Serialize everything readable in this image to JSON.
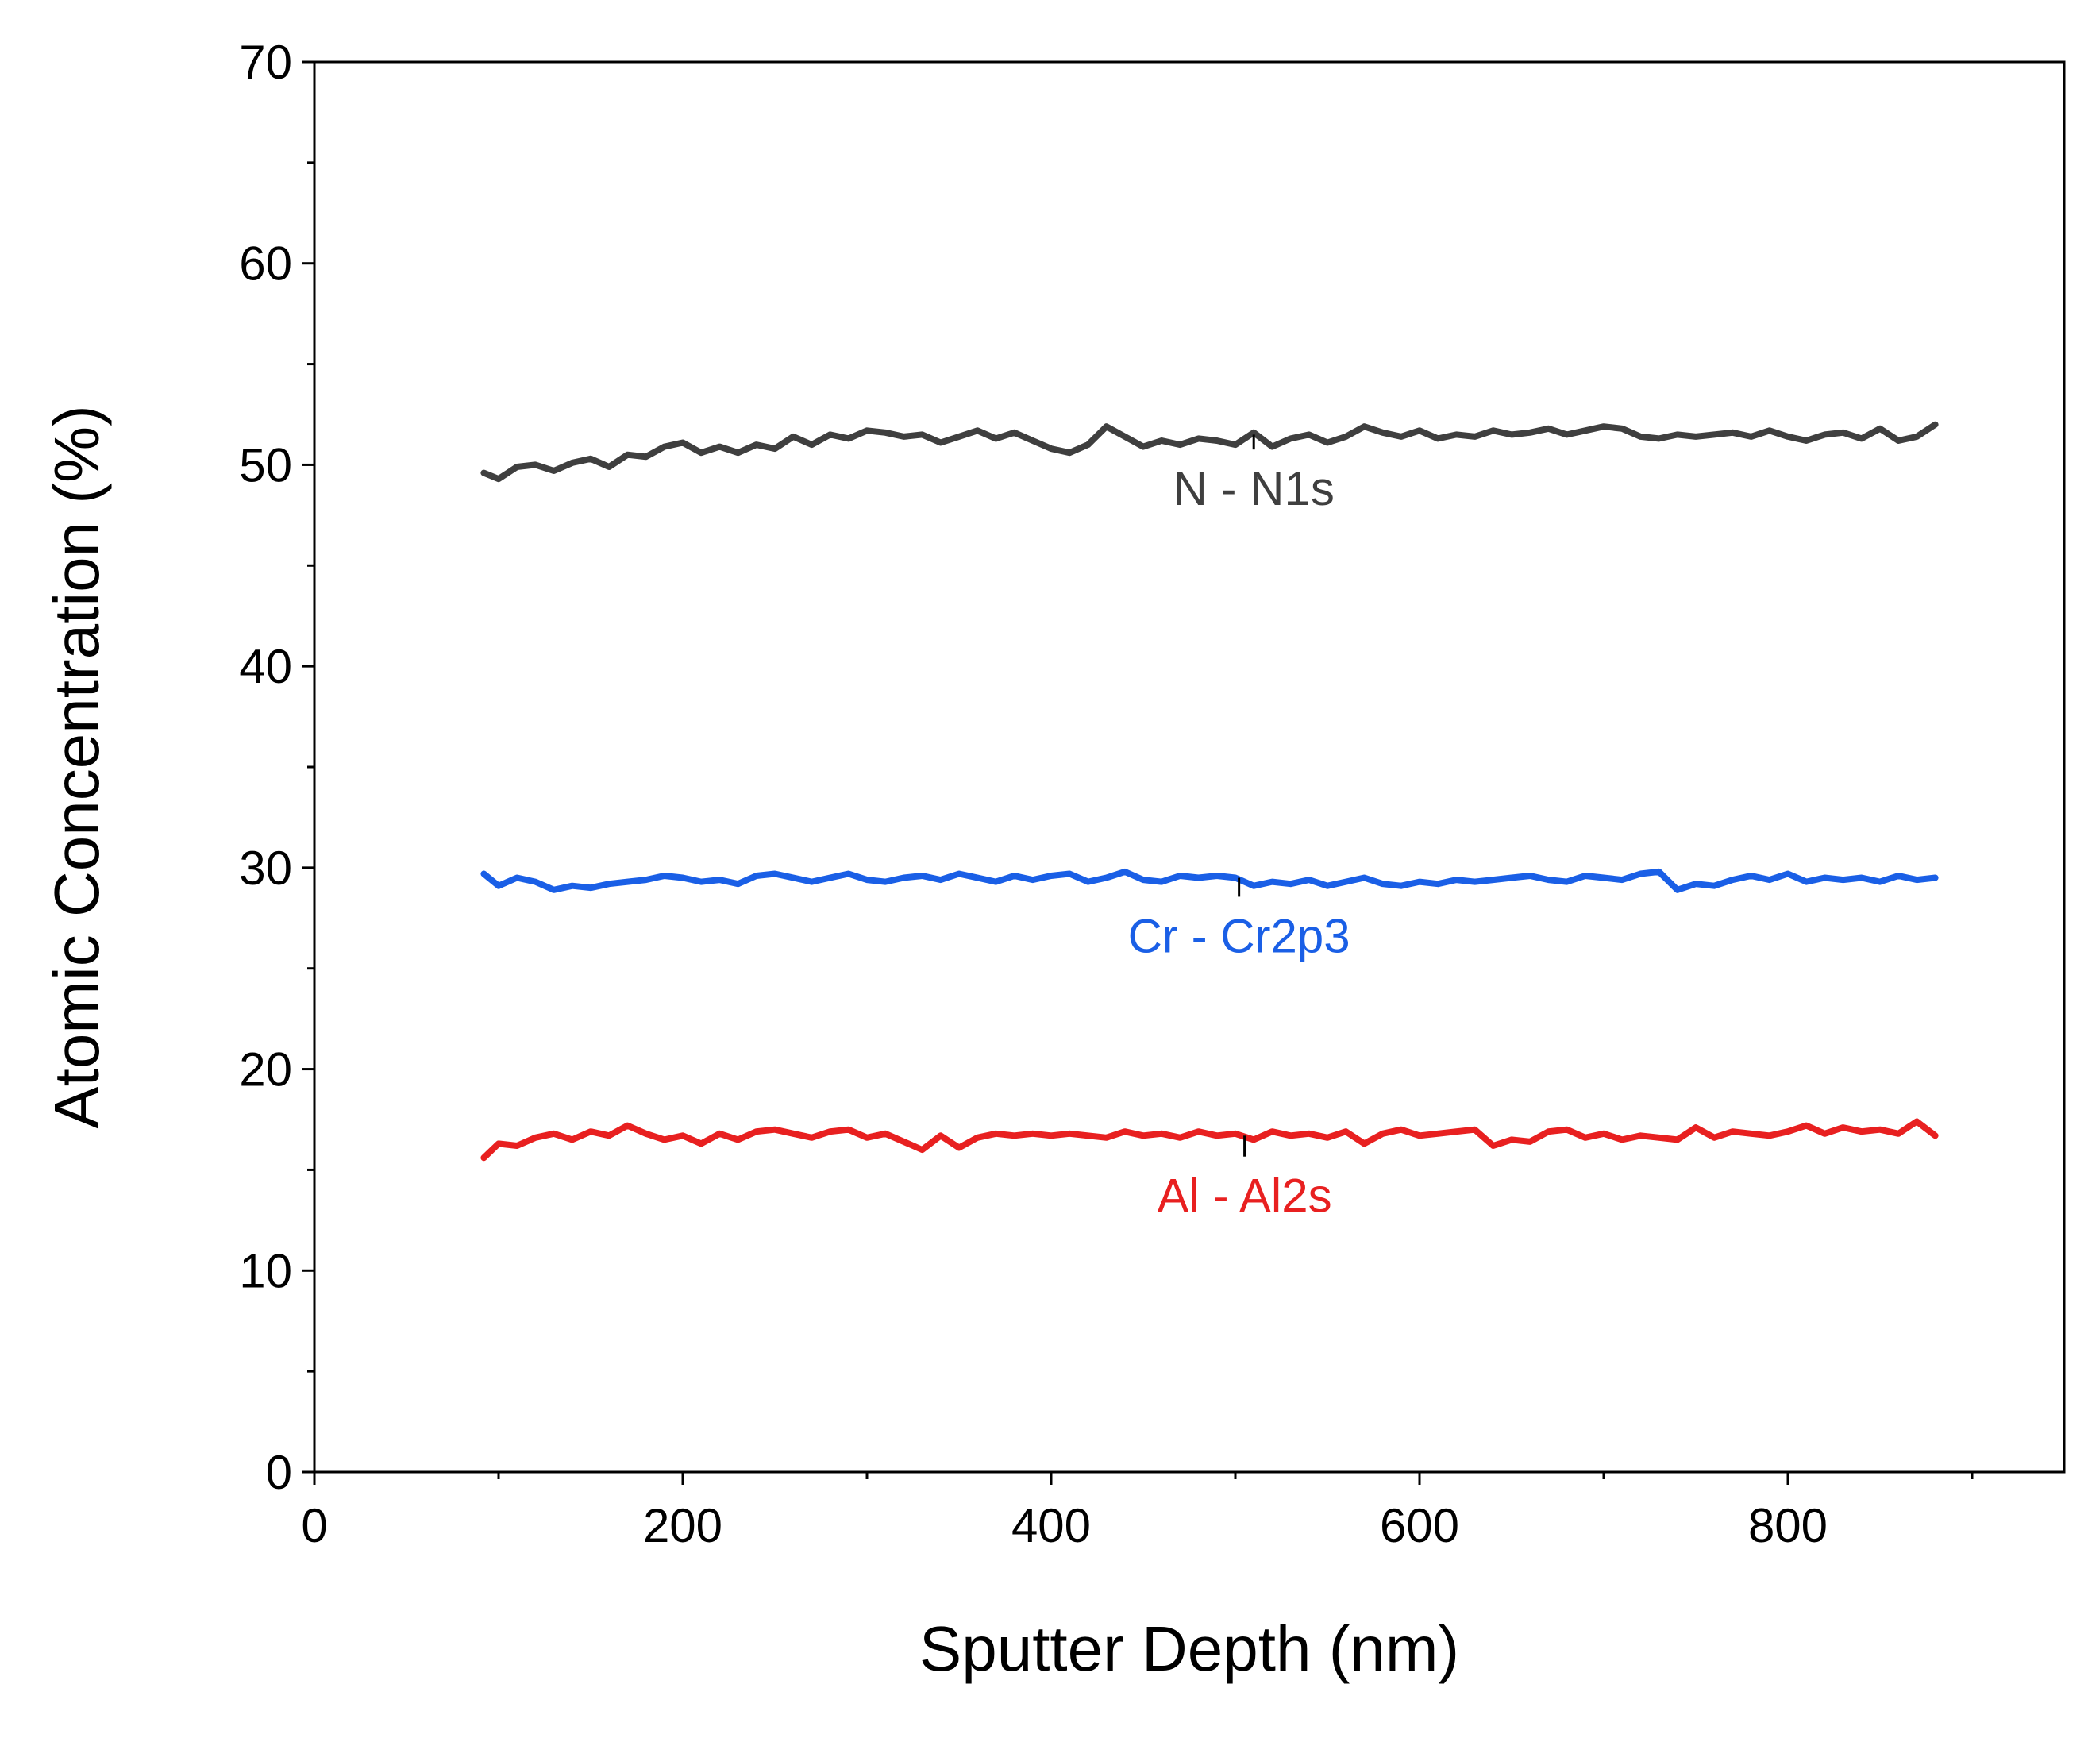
{
  "chart_data": {
    "type": "line",
    "xlabel": "Sputter Depth (nm)",
    "ylabel": "Atomic Concentration (%)",
    "xlim": [
      0,
      950
    ],
    "ylim": [
      0,
      70
    ],
    "xticks": [
      0,
      200,
      400,
      600,
      800
    ],
    "xticks_minor": [
      100,
      300,
      500,
      700,
      900
    ],
    "yticks": [
      0,
      10,
      20,
      30,
      40,
      50,
      60,
      70
    ],
    "yticks_minor": [
      5,
      15,
      25,
      35,
      45,
      55,
      65
    ],
    "xtick_labels": [
      "0",
      "200",
      "400",
      "600",
      "800"
    ],
    "ytick_labels": [
      "0",
      "10",
      "20",
      "30",
      "40",
      "50",
      "60",
      "70"
    ],
    "grid": false,
    "series": [
      {
        "name": "N - N1s",
        "label": "N - N1s",
        "color": "#3f3f3f",
        "label_color": "#3f3f3f",
        "annotation": {
          "x": 510,
          "y_line": 51.5,
          "y_label": 48
        },
        "x": [
          92,
          100,
          110,
          120,
          130,
          140,
          150,
          160,
          170,
          180,
          190,
          200,
          210,
          220,
          230,
          240,
          250,
          260,
          270,
          280,
          290,
          300,
          310,
          320,
          330,
          340,
          350,
          360,
          370,
          380,
          390,
          400,
          410,
          420,
          430,
          440,
          450,
          460,
          470,
          480,
          490,
          500,
          510,
          520,
          530,
          540,
          550,
          560,
          570,
          580,
          590,
          600,
          610,
          620,
          630,
          640,
          650,
          660,
          670,
          680,
          690,
          700,
          710,
          720,
          730,
          740,
          750,
          760,
          770,
          780,
          790,
          800,
          810,
          820,
          830,
          840,
          850,
          860,
          870,
          880
        ],
        "y": [
          49.6,
          49.3,
          49.9,
          50.0,
          49.7,
          50.1,
          50.3,
          49.9,
          50.5,
          50.4,
          50.9,
          51.1,
          50.6,
          50.9,
          50.6,
          51.0,
          50.8,
          51.4,
          51.0,
          51.5,
          51.3,
          51.7,
          51.6,
          51.4,
          51.5,
          51.1,
          51.4,
          51.7,
          51.3,
          51.6,
          51.2,
          50.8,
          50.6,
          51.0,
          51.9,
          51.4,
          50.9,
          51.2,
          51.0,
          51.3,
          51.2,
          51.0,
          51.6,
          50.9,
          51.3,
          51.5,
          51.1,
          51.4,
          51.9,
          51.6,
          51.4,
          51.7,
          51.3,
          51.5,
          51.4,
          51.7,
          51.5,
          51.6,
          51.8,
          51.5,
          51.7,
          51.9,
          51.8,
          51.4,
          51.3,
          51.5,
          51.4,
          51.5,
          51.6,
          51.4,
          51.7,
          51.4,
          51.2,
          51.5,
          51.6,
          51.3,
          51.8,
          51.2,
          51.4,
          52.0
        ]
      },
      {
        "name": "Cr - Cr2p3",
        "label": "Cr - Cr2p3",
        "color": "#1a5fe6",
        "label_color": "#1a5fe6",
        "annotation": {
          "x": 502,
          "y_line": 29.5,
          "y_label": 25.8
        },
        "x": [
          92,
          100,
          110,
          120,
          130,
          140,
          150,
          160,
          170,
          180,
          190,
          200,
          210,
          220,
          230,
          240,
          250,
          260,
          270,
          280,
          290,
          300,
          310,
          320,
          330,
          340,
          350,
          360,
          370,
          380,
          390,
          400,
          410,
          420,
          430,
          440,
          450,
          460,
          470,
          480,
          490,
          500,
          510,
          520,
          530,
          540,
          550,
          560,
          570,
          580,
          590,
          600,
          610,
          620,
          630,
          640,
          650,
          660,
          670,
          680,
          690,
          700,
          710,
          720,
          730,
          740,
          750,
          760,
          770,
          780,
          790,
          800,
          810,
          820,
          830,
          840,
          850,
          860,
          870,
          880
        ],
        "y": [
          29.7,
          29.1,
          29.5,
          29.3,
          28.9,
          29.1,
          29.0,
          29.2,
          29.3,
          29.4,
          29.6,
          29.5,
          29.3,
          29.4,
          29.2,
          29.6,
          29.7,
          29.5,
          29.3,
          29.5,
          29.7,
          29.4,
          29.3,
          29.5,
          29.6,
          29.4,
          29.7,
          29.5,
          29.3,
          29.6,
          29.4,
          29.6,
          29.7,
          29.3,
          29.5,
          29.8,
          29.4,
          29.3,
          29.6,
          29.5,
          29.6,
          29.5,
          29.1,
          29.3,
          29.2,
          29.4,
          29.1,
          29.3,
          29.5,
          29.2,
          29.1,
          29.3,
          29.2,
          29.4,
          29.3,
          29.4,
          29.5,
          29.6,
          29.4,
          29.3,
          29.6,
          29.5,
          29.4,
          29.7,
          29.8,
          28.9,
          29.2,
          29.1,
          29.4,
          29.6,
          29.4,
          29.7,
          29.3,
          29.5,
          29.4,
          29.5,
          29.3,
          29.6,
          29.4,
          29.5
        ]
      },
      {
        "name": "Al - Al2s",
        "label": "Al - Al2s",
        "color": "#e82020",
        "label_color": "#e82020",
        "annotation": {
          "x": 505,
          "y_line": 16.7,
          "y_label": 12.9
        },
        "x": [
          92,
          100,
          110,
          120,
          130,
          140,
          150,
          160,
          170,
          180,
          190,
          200,
          210,
          220,
          230,
          240,
          250,
          260,
          270,
          280,
          290,
          300,
          310,
          320,
          330,
          340,
          350,
          360,
          370,
          380,
          390,
          400,
          410,
          420,
          430,
          440,
          450,
          460,
          470,
          480,
          490,
          500,
          510,
          520,
          530,
          540,
          550,
          560,
          570,
          580,
          590,
          600,
          610,
          620,
          630,
          640,
          650,
          660,
          670,
          680,
          690,
          700,
          710,
          720,
          730,
          740,
          750,
          760,
          770,
          780,
          790,
          800,
          810,
          820,
          830,
          840,
          850,
          860,
          870,
          880
        ],
        "y": [
          15.6,
          16.3,
          16.2,
          16.6,
          16.8,
          16.5,
          16.9,
          16.7,
          17.2,
          16.8,
          16.5,
          16.7,
          16.3,
          16.8,
          16.5,
          16.9,
          17.0,
          16.8,
          16.6,
          16.9,
          17.0,
          16.6,
          16.8,
          16.4,
          16.0,
          16.7,
          16.1,
          16.6,
          16.8,
          16.7,
          16.8,
          16.7,
          16.8,
          16.7,
          16.6,
          16.9,
          16.7,
          16.8,
          16.6,
          16.9,
          16.7,
          16.8,
          16.5,
          16.9,
          16.7,
          16.8,
          16.6,
          16.9,
          16.3,
          16.8,
          17.0,
          16.7,
          16.8,
          16.9,
          17.0,
          16.2,
          16.5,
          16.4,
          16.9,
          17.0,
          16.6,
          16.8,
          16.5,
          16.7,
          16.6,
          16.5,
          17.1,
          16.6,
          16.9,
          16.8,
          16.7,
          16.9,
          17.2,
          16.8,
          17.1,
          16.9,
          17.0,
          16.8,
          17.4,
          16.7
        ]
      }
    ]
  }
}
